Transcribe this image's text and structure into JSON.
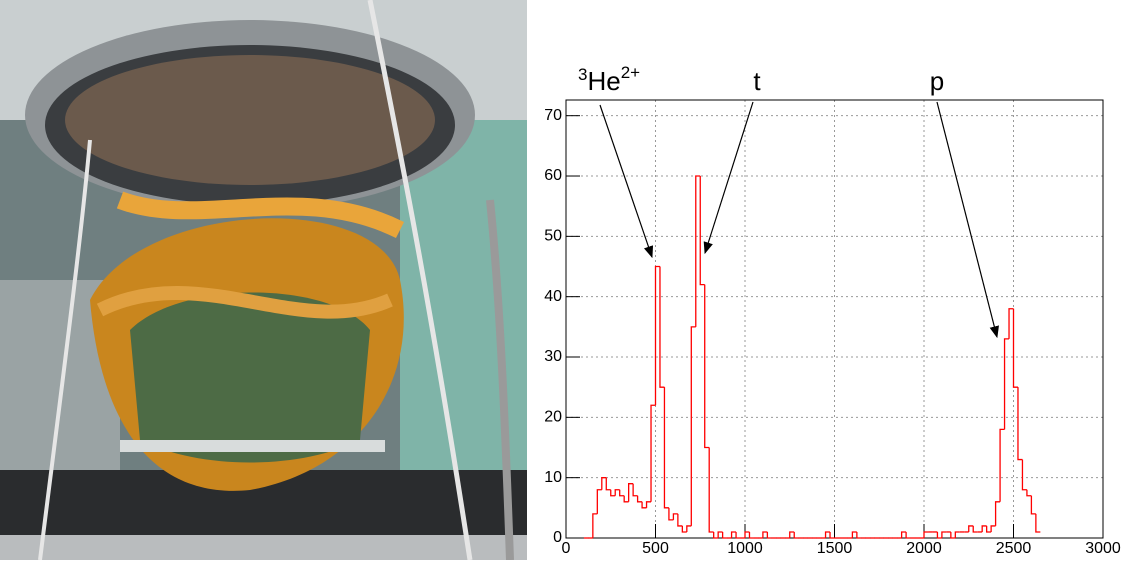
{
  "chart_data": {
    "type": "histogram",
    "bins": [
      100,
      125,
      150,
      175,
      200,
      225,
      250,
      275,
      300,
      325,
      350,
      375,
      400,
      425,
      450,
      475,
      500,
      525,
      550,
      575,
      600,
      625,
      650,
      675,
      700,
      725,
      750,
      775,
      800,
      825,
      850,
      875,
      900,
      925,
      950,
      975,
      1000,
      1025,
      1050,
      1075,
      1100,
      1125,
      1150,
      1175,
      1200,
      1225,
      1250,
      1275,
      1300,
      1325,
      1350,
      1375,
      1400,
      1425,
      1450,
      1475,
      1500,
      1525,
      1550,
      1575,
      1600,
      1625,
      1650,
      1675,
      1700,
      1725,
      1750,
      1775,
      1800,
      1825,
      1850,
      1875,
      1900,
      1925,
      1950,
      1975,
      2000,
      2025,
      2050,
      2075,
      2100,
      2125,
      2150,
      2175,
      2200,
      2225,
      2250,
      2275,
      2300,
      2325,
      2350,
      2375,
      2400,
      2425,
      2450,
      2475,
      2500,
      2525,
      2550,
      2575,
      2600,
      2625,
      2650
    ],
    "values": [
      0,
      0,
      4,
      8,
      10,
      8,
      7,
      8,
      7,
      6,
      9,
      7,
      6,
      5,
      6,
      22,
      45,
      25,
      5,
      3,
      4,
      2,
      1,
      2,
      35,
      60,
      42,
      15,
      1,
      0,
      1,
      0,
      0,
      1,
      0,
      0,
      1,
      0,
      0,
      0,
      1,
      0,
      0,
      0,
      0,
      0,
      1,
      0,
      0,
      0,
      0,
      0,
      0,
      0,
      1,
      0,
      0,
      0,
      0,
      0,
      1,
      0,
      0,
      0,
      0,
      0,
      0,
      0,
      0,
      0,
      0,
      1,
      0,
      0,
      0,
      0,
      1,
      1,
      1,
      0,
      1,
      1,
      0,
      1,
      1,
      1,
      2,
      1,
      1,
      2,
      1,
      2,
      6,
      18,
      33,
      38,
      25,
      13,
      8,
      7,
      4,
      1
    ],
    "color": "#ff0000",
    "xlim": [
      0,
      3000
    ],
    "xticks": [
      0,
      500,
      1000,
      1500,
      2000,
      2500,
      3000
    ],
    "ylim": [
      0,
      72.6
    ],
    "yticks": [
      0,
      10,
      20,
      30,
      40,
      50,
      60,
      70
    ],
    "grid": true,
    "annotations": [
      {
        "pre": "3",
        "text": "He",
        "sup": "2+"
      },
      {
        "text": "t"
      },
      {
        "text": "p"
      }
    ]
  }
}
